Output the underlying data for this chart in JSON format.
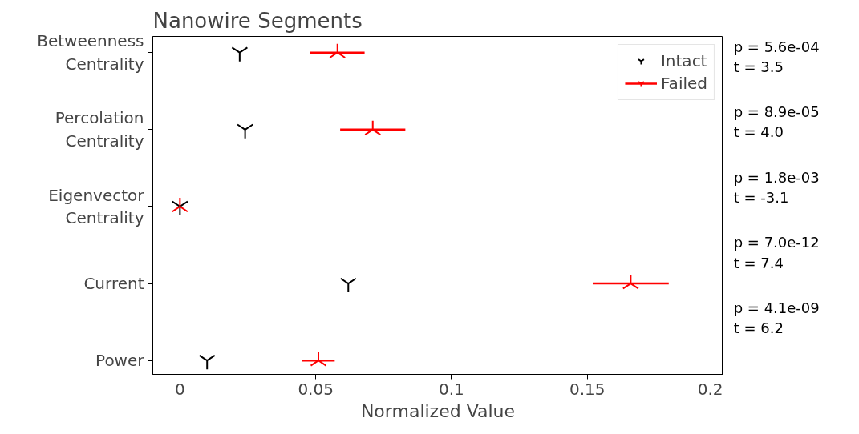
{
  "chart_data": {
    "type": "scatter",
    "orientation": "horizontal",
    "title": "Nanowire Segments",
    "xlabel": "Normalized Value",
    "categories": [
      "Betweenness\nCentrality",
      "Percolation\nCentrality",
      "Eigenvector\nCentrality",
      "Current",
      "Power"
    ],
    "series": [
      {
        "name": "Intact",
        "color": "#000000",
        "values": [
          0.022,
          0.024,
          0.0,
          0.062,
          0.01
        ]
      },
      {
        "name": "Failed",
        "color": "#ff0000",
        "values": [
          0.058,
          0.071,
          0.0,
          0.166,
          0.051
        ],
        "errors": [
          0.01,
          0.012,
          null,
          0.014,
          0.006
        ]
      }
    ],
    "xlim": [
      -0.01,
      0.2
    ],
    "xticks": [
      0,
      0.05,
      0.1,
      0.15,
      0.2
    ],
    "grid": false,
    "legend": "top right",
    "annotations": [
      "p = 5.6e-04\nt = 3.5",
      "p = 8.9e-05\nt = 4.0",
      "p = 1.8e-03\nt = -3.1",
      "p = 7.0e-12\nt = 7.4",
      "p = 4.1e-09\nt = 6.2"
    ]
  }
}
